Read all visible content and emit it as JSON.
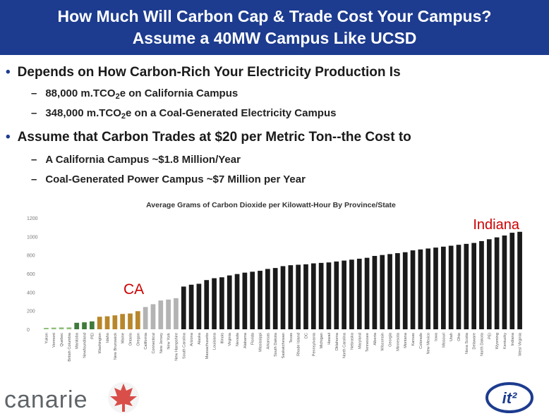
{
  "slide": {
    "title_line1": "How Much Will Carbon Cap & Trade Cost Your Campus?",
    "title_line2": "Assume a 40MW Campus Like UCSD",
    "bullet1": "Depends on How Carbon-Rich Your Electricity Production Is",
    "bullet1_sub1_pre": "88,000 m.TCO",
    "bullet1_sub1_sub": "2",
    "bullet1_sub1_post": "e on California Campus",
    "bullet1_sub2_pre": "348,000 m.TCO",
    "bullet1_sub2_sub": "2",
    "bullet1_sub2_post": "e on a Coal-Generated Electricity Campus",
    "bullet2": "Assume that Carbon Trades at $20 per Metric Ton--the Cost to",
    "bullet2_sub1": "A California Campus ~$1.8 Million/Year",
    "bullet2_sub2": "Coal-Generated Power Campus ~$7 Million per Year",
    "bullet_dot": "•",
    "dash": "–"
  },
  "logos": {
    "canarie": "canarie",
    "it2": "it²"
  },
  "chart_data": {
    "type": "bar",
    "title": "Average Grams of Carbon Dioxide per Kilowatt-Hour By Province/State",
    "ylim": [
      0,
      1200
    ],
    "yticks": [
      0,
      200,
      400,
      600,
      800,
      1000,
      1200
    ],
    "grid": false,
    "categories": [
      "Yukon",
      "Vermont",
      "Quebec",
      "British Columbia",
      "Manitoba",
      "Newfoundland",
      "PEI",
      "Washington",
      "Idaho",
      "New Brunswick",
      "Maine",
      "Ontario",
      "Oregon",
      "California",
      "Connecticut",
      "New Jersey",
      "New York",
      "New Hampshire",
      "South Carolina",
      "Arizona",
      "Alaska",
      "Massachusetts",
      "Louisiana",
      "Illinois",
      "Virginia",
      "Nevada",
      "Alabama",
      "Florida",
      "Mississippi",
      "Arkansas",
      "South Dakota",
      "Saskatchewan",
      "Texas",
      "Rhode Island",
      "DC",
      "Pennsylvania",
      "Michigan",
      "Hawaii",
      "Oklahoma",
      "North Carolina",
      "Nebraska",
      "Maryland",
      "Tennessee",
      "Alberta",
      "Wisconsin",
      "Georgia",
      "Minnesota",
      "Montana",
      "Kansas",
      "Colorado",
      "New Mexico",
      "Iowa",
      "Missouri",
      "Utah",
      "Ohio",
      "Nova Scotia",
      "Delaware",
      "North Dakota",
      "PEI",
      "Wyoming",
      "Kentucky",
      "Indiana",
      "West Virginia"
    ],
    "values": [
      15,
      18,
      20,
      20,
      70,
      75,
      85,
      135,
      140,
      150,
      165,
      170,
      195,
      240,
      270,
      310,
      320,
      335,
      460,
      480,
      490,
      530,
      550,
      560,
      580,
      595,
      610,
      620,
      630,
      650,
      660,
      680,
      690,
      695,
      700,
      710,
      715,
      720,
      730,
      740,
      750,
      760,
      770,
      790,
      800,
      810,
      820,
      830,
      850,
      860,
      870,
      880,
      890,
      900,
      910,
      920,
      930,
      950,
      970,
      990,
      1010,
      1040,
      1050
    ],
    "annotations": [
      {
        "text": "Indiana",
        "color": "#cc0000"
      },
      {
        "text": "CA",
        "color": "#cc0000"
      }
    ],
    "colors": {
      "green": "#8fbf7a",
      "darkgreen": "#3f7a3a",
      "gold": "#b8862b",
      "gray": "#b3b3b3",
      "dark": "#1a1a1a",
      "title_bar": "#1d3c8f"
    }
  }
}
